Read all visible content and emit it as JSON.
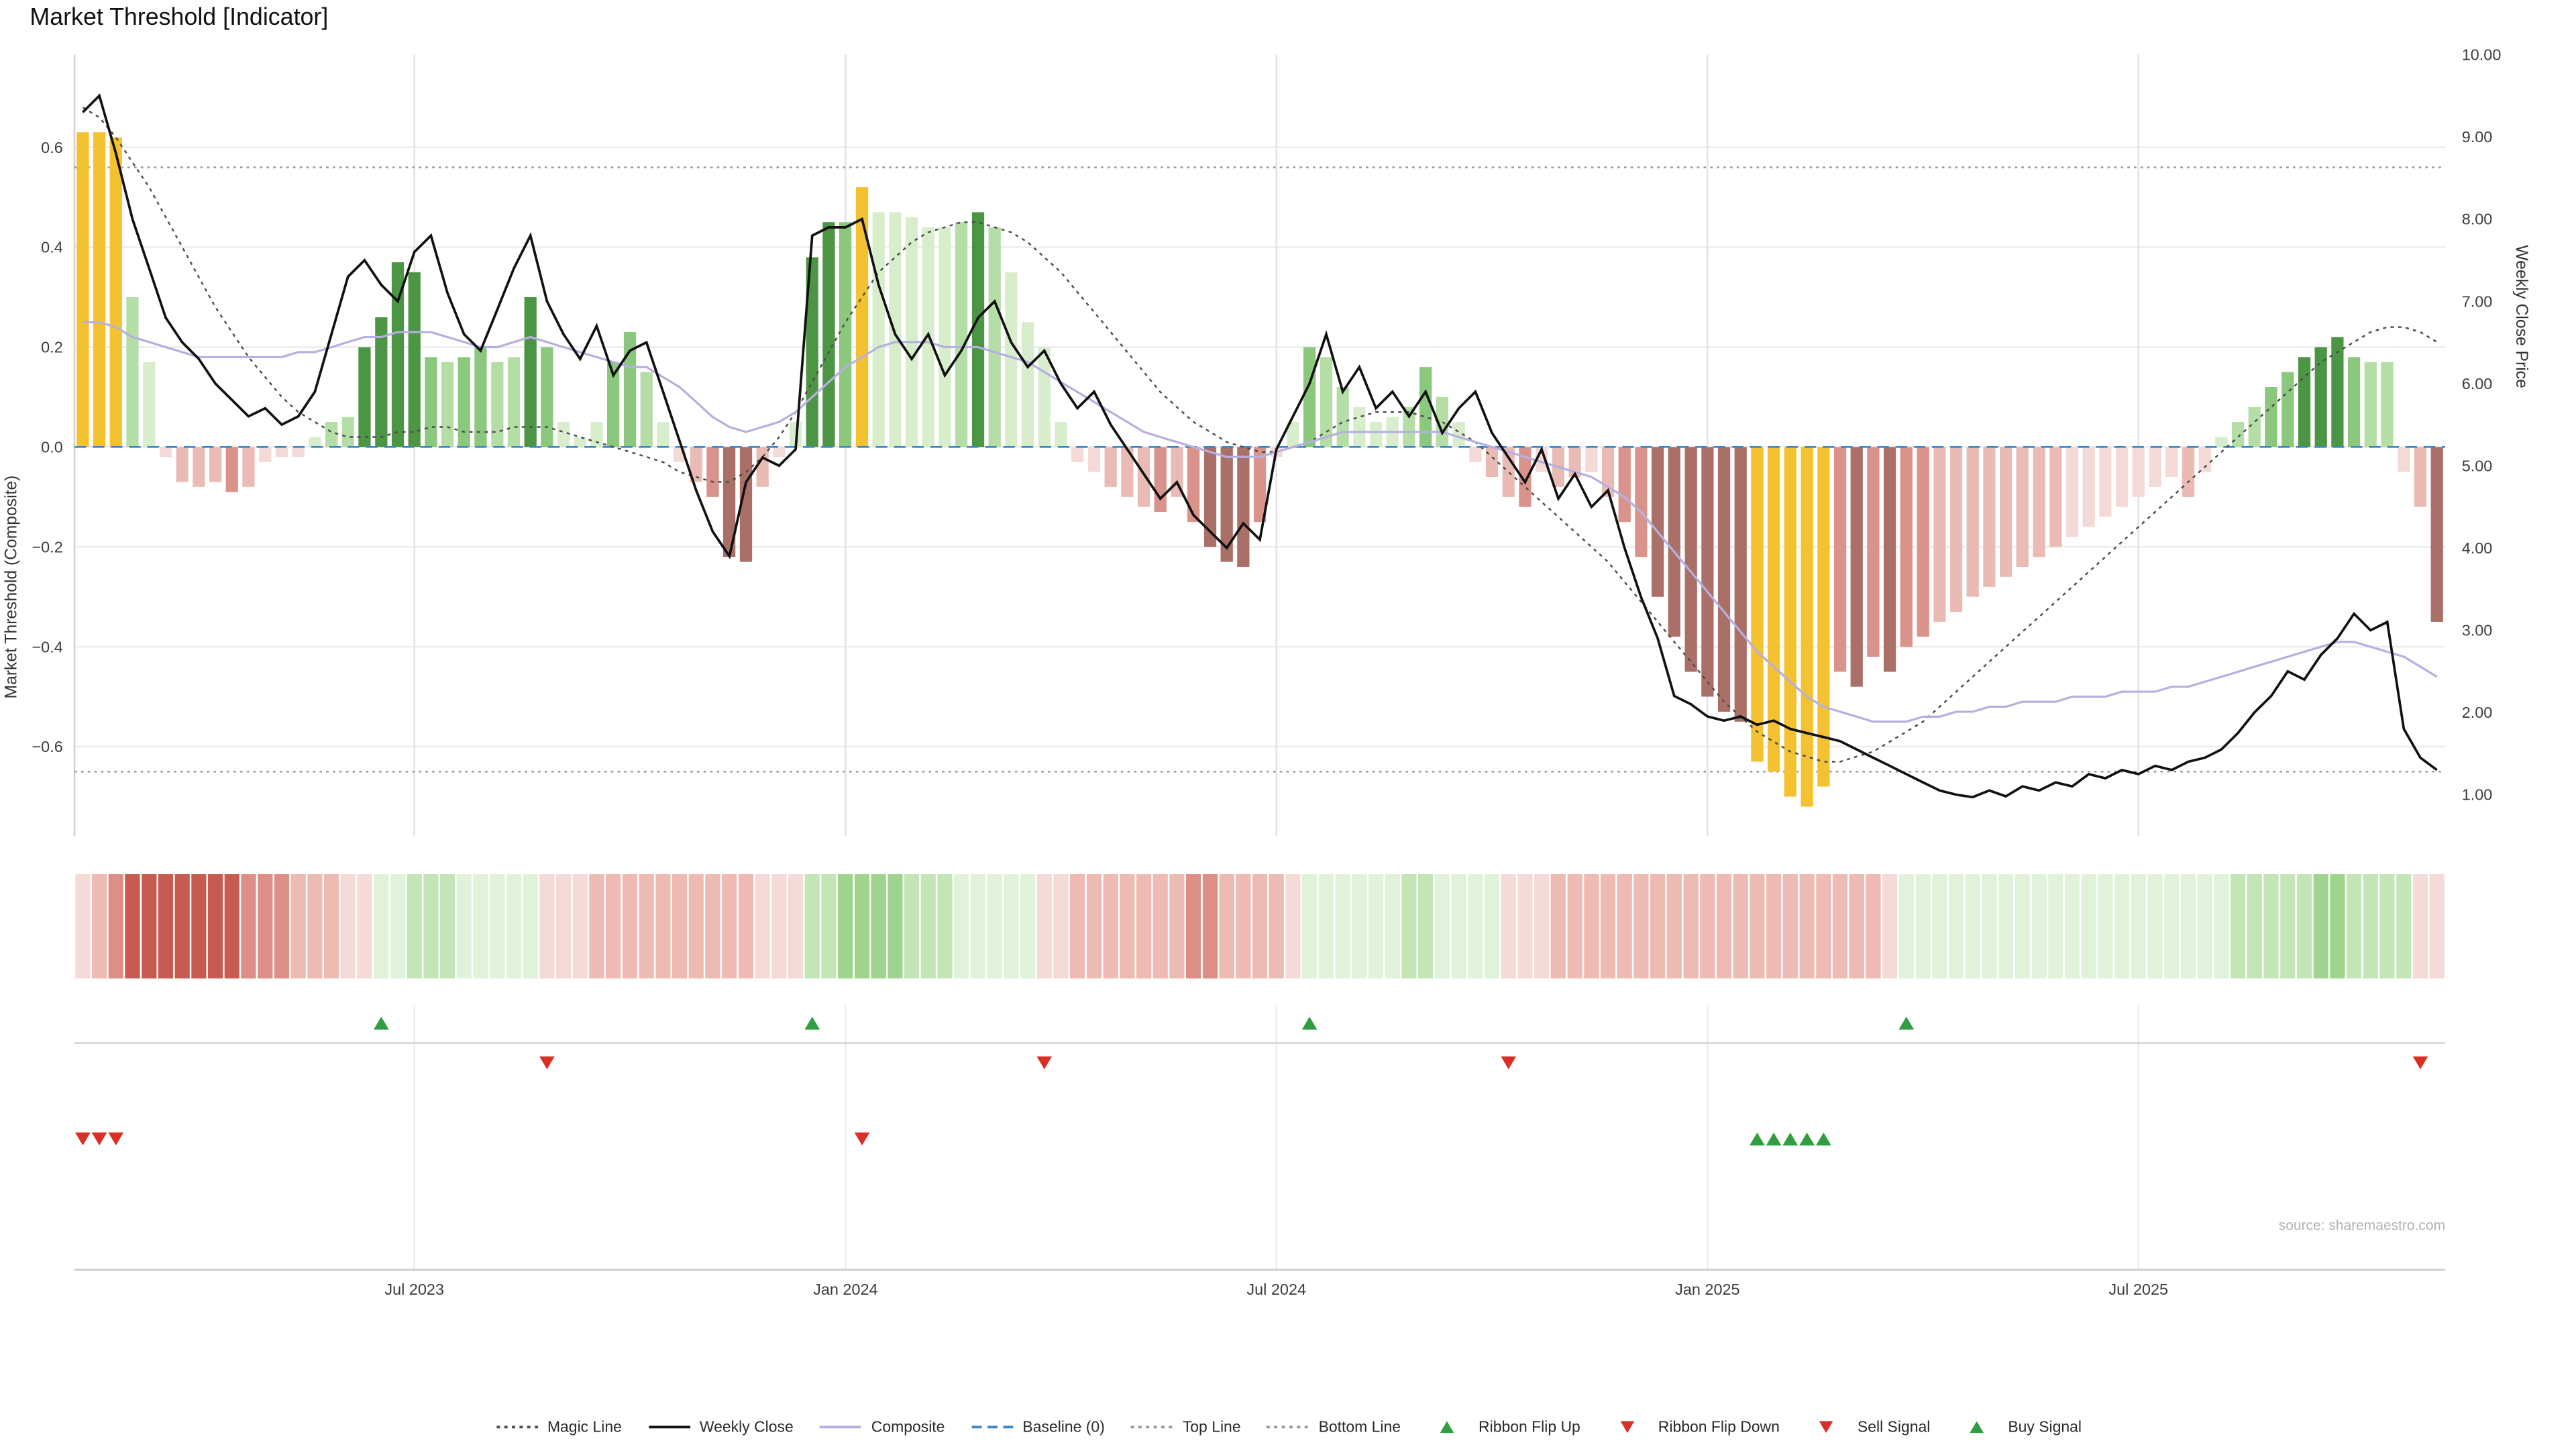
{
  "title": "Market Threshold [Indicator]",
  "source": "source: sharemaestro.com",
  "axes": {
    "left_label": "Market Threshold (Composite)",
    "right_label": "Weekly Close Price"
  },
  "colors": {
    "weekly_close": "#111111",
    "composite": "#b5afe2",
    "magic_line": "#4d4d4d",
    "baseline": "#3a87c8",
    "top_bottom_line": "#999999",
    "signal_green": "#2f9e41",
    "signal_red": "#d93025",
    "grid": "#ececec",
    "grid_vertical": "#e2e2e2",
    "axis_text": "#3c3c3c",
    "separator": "#d6d6d6",
    "source_text": "#b3b3b3"
  },
  "palette": {
    "gold": "#f4c230",
    "g1": "#d8edcb",
    "g2": "#b5dda6",
    "g3": "#8bc77d",
    "g4": "#4c9544",
    "p1": "#f4dad6",
    "p2": "#eabbb5",
    "p3": "#d9938b",
    "p4": "#aa7068",
    "R1": "#f5dbd8",
    "R2": "#edbab4",
    "R3": "#dd8e86",
    "R4": "#c55b51",
    "G1": "#e0f2d9",
    "G2": "#c4e6b7",
    "G3": "#9ed48e",
    "G4": "#72be61"
  },
  "legend": [
    {
      "label": "Magic Line",
      "sample": "dotted",
      "color": "#4d4d4d"
    },
    {
      "label": "Weekly Close",
      "sample": "solid",
      "color": "#111111"
    },
    {
      "label": "Composite",
      "sample": "solid",
      "color": "#b5afe2"
    },
    {
      "label": "Baseline (0)",
      "sample": "dashed",
      "color": "#3a87c8"
    },
    {
      "label": "Top Line",
      "sample": "dotted",
      "color": "#999999"
    },
    {
      "label": "Bottom Line",
      "sample": "dotted",
      "color": "#999999"
    },
    {
      "label": "Ribbon Flip Up",
      "sample": "tri-up",
      "color": "#2f9e41"
    },
    {
      "label": "Ribbon Flip Down",
      "sample": "tri-down",
      "color": "#d93025"
    },
    {
      "label": "Sell Signal",
      "sample": "tri-down",
      "color": "#d93025"
    },
    {
      "label": "Buy Signal",
      "sample": "tri-up",
      "color": "#2f9e41"
    }
  ],
  "chart_data": {
    "type": "bar",
    "title": "Market Threshold [Indicator]",
    "xlabel": "",
    "left_ylabel": "Market Threshold (Composite)",
    "right_ylabel": "Weekly Close Price",
    "left_ylim": [
      -0.78,
      0.79
    ],
    "right_ylim": [
      0.5,
      10.0
    ],
    "top_line": 0.56,
    "bottom_line": -0.65,
    "baseline": 0,
    "left_ticks": [
      0.6,
      0.4,
      0.2,
      0,
      -0.2,
      -0.4,
      -0.6
    ],
    "left_tick_labels": [
      "0.6",
      "0.4",
      "0.2",
      "0.0",
      "−0.2",
      "−0.4",
      "−0.6"
    ],
    "right_ticks": [
      10,
      9,
      8,
      7,
      6,
      5,
      4,
      3,
      2,
      1
    ],
    "right_tick_labels": [
      "10.00",
      "9.00",
      "8.00",
      "7.00",
      "6.00",
      "5.00",
      "4.00",
      "3.00",
      "2.00",
      "1.00"
    ],
    "x_ticks": [
      {
        "week": 20,
        "label": "Jul 2023"
      },
      {
        "week": 46,
        "label": "Jan 2024"
      },
      {
        "week": 72,
        "label": "Jul 2024"
      },
      {
        "week": 98,
        "label": "Jan 2025"
      },
      {
        "week": 124,
        "label": "Jul 2025"
      }
    ],
    "columns": [
      "threshold",
      "bar_color",
      "weekly_close",
      "composite",
      "magic_line",
      "ribbon_intensity"
    ],
    "weeks": [
      [
        0.63,
        "gold",
        9.3,
        0.25,
        0.68,
        -1
      ],
      [
        0.63,
        "gold",
        9.5,
        0.25,
        0.66,
        -2
      ],
      [
        0.62,
        "gold",
        8.8,
        0.24,
        0.62,
        -3
      ],
      [
        0.3,
        "g2",
        8.0,
        0.22,
        0.57,
        -4
      ],
      [
        0.17,
        "g1",
        7.4,
        0.21,
        0.52,
        -4
      ],
      [
        -0.02,
        "p1",
        6.8,
        0.2,
        0.46,
        -4
      ],
      [
        -0.07,
        "p2",
        6.5,
        0.19,
        0.4,
        -4
      ],
      [
        -0.08,
        "p2",
        6.3,
        0.18,
        0.34,
        -4
      ],
      [
        -0.07,
        "p2",
        6.0,
        0.18,
        0.28,
        -4
      ],
      [
        -0.09,
        "p3",
        5.8,
        0.18,
        0.23,
        -4
      ],
      [
        -0.08,
        "p2",
        5.6,
        0.18,
        0.18,
        -3
      ],
      [
        -0.03,
        "p1",
        5.7,
        0.18,
        0.14,
        -3
      ],
      [
        -0.02,
        "p1",
        5.5,
        0.18,
        0.1,
        -3
      ],
      [
        -0.02,
        "p1",
        5.6,
        0.19,
        0.07,
        -2
      ],
      [
        0.02,
        "g1",
        5.9,
        0.19,
        0.05,
        -2
      ],
      [
        0.05,
        "g2",
        6.6,
        0.2,
        0.03,
        -2
      ],
      [
        0.06,
        "g2",
        7.3,
        0.21,
        0.02,
        -1
      ],
      [
        0.2,
        "g4",
        7.5,
        0.22,
        0.02,
        -1
      ],
      [
        0.26,
        "g4",
        7.2,
        0.22,
        0.02,
        1
      ],
      [
        0.37,
        "g4",
        7.0,
        0.23,
        0.03,
        1
      ],
      [
        0.35,
        "g4",
        7.6,
        0.23,
        0.03,
        2
      ],
      [
        0.18,
        "g3",
        7.8,
        0.23,
        0.04,
        2
      ],
      [
        0.17,
        "g2",
        7.1,
        0.22,
        0.04,
        2
      ],
      [
        0.18,
        "g3",
        6.6,
        0.21,
        0.03,
        1
      ],
      [
        0.2,
        "g3",
        6.4,
        0.2,
        0.03,
        1
      ],
      [
        0.17,
        "g2",
        6.9,
        0.2,
        0.03,
        1
      ],
      [
        0.18,
        "g2",
        7.4,
        0.21,
        0.04,
        1
      ],
      [
        0.3,
        "g4",
        7.8,
        0.22,
        0.04,
        1
      ],
      [
        0.2,
        "g3",
        7.0,
        0.21,
        0.04,
        -1
      ],
      [
        0.05,
        "g1",
        6.6,
        0.2,
        0.03,
        -1
      ],
      [
        0.02,
        "g1",
        6.3,
        0.19,
        0.02,
        -1
      ],
      [
        0.05,
        "g1",
        6.7,
        0.18,
        0.01,
        -2
      ],
      [
        0.17,
        "g3",
        6.1,
        0.17,
        0.0,
        -2
      ],
      [
        0.23,
        "g3",
        6.4,
        0.16,
        -0.01,
        -2
      ],
      [
        0.15,
        "g2",
        6.5,
        0.16,
        -0.02,
        -2
      ],
      [
        0.05,
        "g1",
        5.9,
        0.14,
        -0.03,
        -2
      ],
      [
        -0.03,
        "p1",
        5.3,
        0.12,
        -0.05,
        -2
      ],
      [
        -0.07,
        "p2",
        4.7,
        0.09,
        -0.06,
        -2
      ],
      [
        -0.1,
        "p3",
        4.2,
        0.06,
        -0.07,
        -2
      ],
      [
        -0.22,
        "p4",
        3.9,
        0.04,
        -0.07,
        -2
      ],
      [
        -0.23,
        "p4",
        4.8,
        0.03,
        -0.05,
        -2
      ],
      [
        -0.08,
        "p2",
        5.1,
        0.04,
        -0.02,
        -1
      ],
      [
        -0.02,
        "p1",
        5.0,
        0.05,
        0.02,
        -1
      ],
      [
        0.05,
        "g1",
        5.2,
        0.07,
        0.07,
        -1
      ],
      [
        0.38,
        "g4",
        7.8,
        0.1,
        0.13,
        2
      ],
      [
        0.45,
        "g4",
        7.9,
        0.13,
        0.19,
        2
      ],
      [
        0.45,
        "g3",
        7.9,
        0.16,
        0.25,
        3
      ],
      [
        0.52,
        "gold",
        8.0,
        0.18,
        0.3,
        3
      ],
      [
        0.47,
        "g1",
        7.2,
        0.2,
        0.35,
        3
      ],
      [
        0.47,
        "g1",
        6.6,
        0.21,
        0.38,
        3
      ],
      [
        0.46,
        "g1",
        6.3,
        0.21,
        0.41,
        2
      ],
      [
        0.44,
        "g1",
        6.6,
        0.21,
        0.43,
        2
      ],
      [
        0.44,
        "g1",
        6.1,
        0.2,
        0.44,
        2
      ],
      [
        0.45,
        "g2",
        6.4,
        0.2,
        0.45,
        1
      ],
      [
        0.47,
        "g4",
        6.8,
        0.2,
        0.45,
        1
      ],
      [
        0.44,
        "g2",
        7.0,
        0.19,
        0.44,
        1
      ],
      [
        0.35,
        "g1",
        6.5,
        0.18,
        0.43,
        1
      ],
      [
        0.25,
        "g1",
        6.2,
        0.17,
        0.41,
        1
      ],
      [
        0.2,
        "g1",
        6.4,
        0.15,
        0.38,
        -1
      ],
      [
        0.05,
        "g1",
        6.0,
        0.13,
        0.35,
        -1
      ],
      [
        -0.03,
        "p1",
        5.7,
        0.11,
        0.31,
        -2
      ],
      [
        -0.05,
        "p1",
        5.9,
        0.09,
        0.27,
        -2
      ],
      [
        -0.08,
        "p2",
        5.5,
        0.07,
        0.23,
        -2
      ],
      [
        -0.1,
        "p2",
        5.2,
        0.05,
        0.19,
        -2
      ],
      [
        -0.12,
        "p2",
        4.9,
        0.03,
        0.15,
        -2
      ],
      [
        -0.13,
        "p3",
        4.6,
        0.02,
        0.11,
        -2
      ],
      [
        -0.1,
        "p2",
        4.8,
        0.01,
        0.08,
        -2
      ],
      [
        -0.15,
        "p3",
        4.4,
        0.0,
        0.05,
        -3
      ],
      [
        -0.2,
        "p4",
        4.2,
        -0.01,
        0.03,
        -3
      ],
      [
        -0.23,
        "p4",
        4.0,
        -0.02,
        0.01,
        -2
      ],
      [
        -0.24,
        "p4",
        4.3,
        -0.02,
        0.0,
        -2
      ],
      [
        -0.15,
        "p3",
        4.1,
        -0.02,
        -0.01,
        -2
      ],
      [
        -0.02,
        "p1",
        5.2,
        -0.01,
        -0.01,
        -2
      ],
      [
        0.05,
        "g1",
        5.6,
        0.0,
        0.0,
        -1
      ],
      [
        0.2,
        "g3",
        6.0,
        0.01,
        0.01,
        1
      ],
      [
        0.18,
        "g2",
        6.6,
        0.02,
        0.03,
        1
      ],
      [
        0.12,
        "g2",
        5.9,
        0.03,
        0.05,
        1
      ],
      [
        0.08,
        "g1",
        6.2,
        0.03,
        0.06,
        1
      ],
      [
        0.05,
        "g1",
        5.7,
        0.03,
        0.07,
        1
      ],
      [
        0.06,
        "g1",
        5.9,
        0.03,
        0.07,
        1
      ],
      [
        0.08,
        "g2",
        5.6,
        0.03,
        0.07,
        2
      ],
      [
        0.16,
        "g3",
        5.9,
        0.03,
        0.06,
        2
      ],
      [
        0.1,
        "g2",
        5.4,
        0.03,
        0.05,
        1
      ],
      [
        0.05,
        "g1",
        5.7,
        0.02,
        0.03,
        1
      ],
      [
        -0.03,
        "p1",
        5.9,
        0.01,
        0.01,
        1
      ],
      [
        -0.06,
        "p2",
        5.4,
        0.0,
        -0.02,
        1
      ],
      [
        -0.1,
        "p2",
        5.1,
        -0.01,
        -0.05,
        -1
      ],
      [
        -0.12,
        "p3",
        4.8,
        -0.02,
        -0.08,
        -1
      ],
      [
        -0.05,
        "p1",
        5.2,
        -0.03,
        -0.11,
        -1
      ],
      [
        -0.08,
        "p2",
        4.6,
        -0.04,
        -0.14,
        -2
      ],
      [
        -0.06,
        "p2",
        4.9,
        -0.05,
        -0.17,
        -2
      ],
      [
        -0.05,
        "p1",
        4.5,
        -0.06,
        -0.2,
        -2
      ],
      [
        -0.1,
        "p2",
        4.7,
        -0.08,
        -0.23,
        -2
      ],
      [
        -0.15,
        "p3",
        4.0,
        -0.1,
        -0.27,
        -2
      ],
      [
        -0.22,
        "p3",
        3.4,
        -0.13,
        -0.31,
        -2
      ],
      [
        -0.3,
        "p4",
        2.9,
        -0.17,
        -0.35,
        -2
      ],
      [
        -0.38,
        "p4",
        2.2,
        -0.21,
        -0.39,
        -2
      ],
      [
        -0.45,
        "p4",
        2.1,
        -0.25,
        -0.43,
        -2
      ],
      [
        -0.5,
        "p4",
        1.95,
        -0.29,
        -0.47,
        -2
      ],
      [
        -0.53,
        "p4",
        1.9,
        -0.33,
        -0.51,
        -2
      ],
      [
        -0.55,
        "p4",
        1.95,
        -0.37,
        -0.54,
        -2
      ],
      [
        -0.63,
        "gold",
        1.85,
        -0.41,
        -0.57,
        -2
      ],
      [
        -0.65,
        "gold",
        1.9,
        -0.44,
        -0.59,
        -2
      ],
      [
        -0.7,
        "gold",
        1.8,
        -0.47,
        -0.61,
        -2
      ],
      [
        -0.72,
        "gold",
        1.75,
        -0.5,
        -0.62,
        -2
      ],
      [
        -0.68,
        "gold",
        1.7,
        -0.52,
        -0.63,
        -2
      ],
      [
        -0.45,
        "p3",
        1.65,
        -0.53,
        -0.63,
        -2
      ],
      [
        -0.48,
        "p4",
        1.55,
        -0.54,
        -0.62,
        -2
      ],
      [
        -0.42,
        "p3",
        1.45,
        -0.55,
        -0.61,
        -2
      ],
      [
        -0.45,
        "p4",
        1.35,
        -0.55,
        -0.59,
        -1
      ],
      [
        -0.4,
        "p3",
        1.25,
        -0.55,
        -0.57,
        1
      ],
      [
        -0.38,
        "p3",
        1.15,
        -0.54,
        -0.55,
        1
      ],
      [
        -0.35,
        "p2",
        1.05,
        -0.54,
        -0.52,
        1
      ],
      [
        -0.33,
        "p2",
        1.0,
        -0.53,
        -0.49,
        1
      ],
      [
        -0.3,
        "p2",
        0.97,
        -0.53,
        -0.46,
        1
      ],
      [
        -0.28,
        "p2",
        1.05,
        -0.52,
        -0.43,
        1
      ],
      [
        -0.26,
        "p2",
        0.98,
        -0.52,
        -0.4,
        1
      ],
      [
        -0.24,
        "p2",
        1.1,
        -0.51,
        -0.37,
        1
      ],
      [
        -0.22,
        "p2",
        1.05,
        -0.51,
        -0.34,
        1
      ],
      [
        -0.2,
        "p2",
        1.15,
        -0.51,
        -0.31,
        1
      ],
      [
        -0.18,
        "p1",
        1.1,
        -0.5,
        -0.28,
        1
      ],
      [
        -0.16,
        "p1",
        1.25,
        -0.5,
        -0.25,
        1
      ],
      [
        -0.14,
        "p1",
        1.2,
        -0.5,
        -0.22,
        1
      ],
      [
        -0.12,
        "p1",
        1.3,
        -0.49,
        -0.19,
        1
      ],
      [
        -0.1,
        "p1",
        1.25,
        -0.49,
        -0.16,
        1
      ],
      [
        -0.08,
        "p1",
        1.35,
        -0.49,
        -0.13,
        1
      ],
      [
        -0.06,
        "p1",
        1.3,
        -0.48,
        -0.1,
        1
      ],
      [
        -0.1,
        "p2",
        1.4,
        -0.48,
        -0.07,
        1
      ],
      [
        -0.05,
        "p1",
        1.45,
        -0.47,
        -0.04,
        1
      ],
      [
        0.02,
        "g1",
        1.55,
        -0.46,
        -0.01,
        1
      ],
      [
        0.05,
        "g2",
        1.75,
        -0.45,
        0.02,
        2
      ],
      [
        0.08,
        "g2",
        2.0,
        -0.44,
        0.05,
        2
      ],
      [
        0.12,
        "g3",
        2.2,
        -0.43,
        0.08,
        2
      ],
      [
        0.15,
        "g3",
        2.5,
        -0.42,
        0.11,
        2
      ],
      [
        0.18,
        "g4",
        2.4,
        -0.41,
        0.14,
        2
      ],
      [
        0.2,
        "g4",
        2.7,
        -0.4,
        0.17,
        3
      ],
      [
        0.22,
        "g4",
        2.9,
        -0.39,
        0.19,
        3
      ],
      [
        0.18,
        "g3",
        3.2,
        -0.39,
        0.21,
        2
      ],
      [
        0.17,
        "g2",
        3.0,
        -0.4,
        0.23,
        2
      ],
      [
        0.17,
        "g2",
        3.1,
        -0.41,
        0.24,
        2
      ],
      [
        -0.05,
        "p1",
        1.8,
        -0.42,
        0.24,
        2
      ],
      [
        -0.12,
        "p2",
        1.45,
        -0.44,
        0.23,
        -1
      ],
      [
        -0.35,
        "p4",
        1.3,
        -0.46,
        0.21,
        -1
      ]
    ],
    "signals": {
      "ribbon_flip_up_weeks": [
        18,
        44,
        74,
        110
      ],
      "ribbon_flip_down_weeks": [
        28,
        58,
        86,
        141
      ],
      "sell_weeks": [
        0,
        1,
        2,
        47
      ],
      "buy_weeks": [
        101,
        102,
        103,
        104,
        105
      ]
    }
  }
}
